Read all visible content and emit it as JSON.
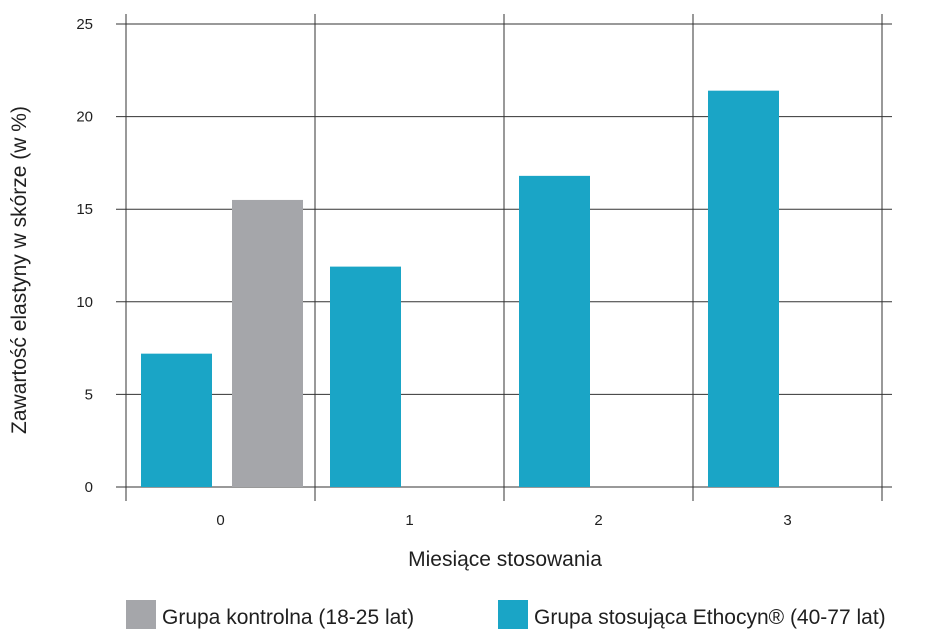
{
  "chart_data": {
    "type": "bar",
    "title": "",
    "xlabel": "Miesiące stosowania",
    "ylabel": "Zawartość elastyny w skórze (w %)",
    "categories": [
      "0",
      "1",
      "2",
      "3"
    ],
    "ylim": [
      0,
      25
    ],
    "yticks": [
      0,
      5,
      10,
      15,
      20,
      25
    ],
    "grid": true,
    "legend_position": "bottom",
    "series": [
      {
        "name": "Grupa stosująca Ethocyn® (40-77 lat)",
        "color": "#1aa5c6",
        "values": [
          7.2,
          11.9,
          16.8,
          21.4
        ]
      },
      {
        "name": "Grupa kontrolna (18-25 lat)",
        "color": "#a5a6aa",
        "values": [
          15.5,
          null,
          null,
          null
        ]
      }
    ],
    "legend": [
      {
        "label": "Grupa kontrolna (18-25 lat)",
        "color": "#a5a6aa"
      },
      {
        "label": "Grupa stosująca Ethocyn® (40-77 lat)",
        "color": "#1aa5c6"
      }
    ]
  }
}
